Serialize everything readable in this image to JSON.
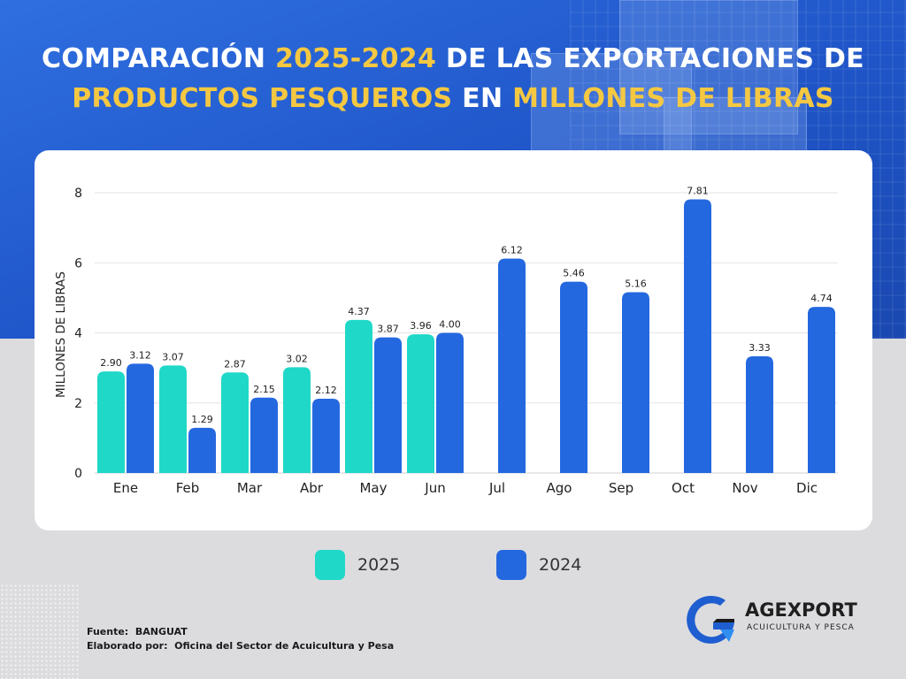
{
  "title": {
    "part1": "COMPARACIÓN ",
    "part2": "2025-2024",
    "part3": " DE LAS EXPORTACIONES DE",
    "part4": "PRODUCTOS PESQUEROS",
    "part5": " EN ",
    "part6": "MILLONES DE LIBRAS"
  },
  "colors": {
    "series_2025": "#1fd8c8",
    "series_2024": "#2468e0",
    "title_highlight": "#f5c842",
    "hero_background": "#2560d8"
  },
  "chart_data": {
    "type": "bar",
    "ylabel": "MILLONES DE LIBRAS",
    "xlabel": "",
    "ylim": [
      0,
      8
    ],
    "yticks": [
      0,
      2,
      4,
      6,
      8
    ],
    "grid": true,
    "legend_position": "bottom",
    "categories": [
      "Ene",
      "Feb",
      "Mar",
      "Abr",
      "May",
      "Jun",
      "Jul",
      "Ago",
      "Sep",
      "Oct",
      "Nov",
      "Dic"
    ],
    "series": [
      {
        "name": "2025",
        "values": [
          2.9,
          3.07,
          2.87,
          3.02,
          4.37,
          3.96,
          null,
          null,
          null,
          null,
          null,
          null
        ],
        "labels": [
          "2.90",
          "3.07",
          "2.87",
          "3.02",
          "4.37",
          "3.96",
          null,
          null,
          null,
          null,
          null,
          null
        ]
      },
      {
        "name": "2024",
        "values": [
          3.12,
          1.29,
          2.15,
          2.12,
          3.87,
          4.0,
          6.12,
          5.46,
          5.16,
          7.81,
          3.33,
          4.74
        ],
        "labels": [
          "3.12",
          "1.29",
          "2.15",
          "2.12",
          "3.87",
          "4.00",
          "6.12",
          "5.46",
          "5.16",
          "7.81",
          "3.33",
          "4.74"
        ]
      }
    ]
  },
  "legend": {
    "item_2025": "2025",
    "item_2024": "2024"
  },
  "footer": {
    "source": "Fuente:  BANGUAT",
    "elaborated": "Elaborado por:  Oficina del Sector de Acuicultura y Pesa"
  },
  "logo": {
    "name": "AGEXPORT",
    "subtitle": "ACUICULTURA Y PESCA"
  }
}
